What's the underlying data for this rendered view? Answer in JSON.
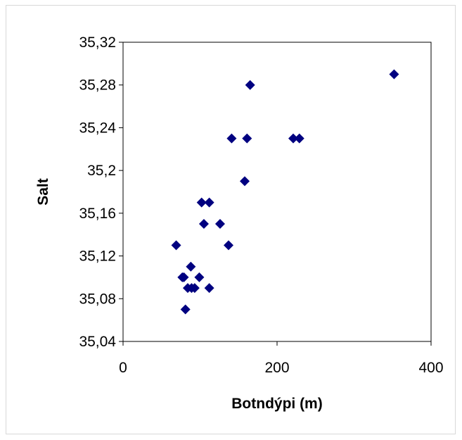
{
  "chart_data": {
    "type": "scatter",
    "title": "",
    "xlabel": "Botndýpi (m)",
    "ylabel": "Salt",
    "xlim": [
      0,
      400
    ],
    "ylim": [
      35.04,
      35.32
    ],
    "x_ticks": [
      "0",
      "200",
      "400"
    ],
    "y_ticks": [
      "35,04",
      "35,08",
      "35,12",
      "35,16",
      "35,2",
      "35,24",
      "35,28",
      "35,32"
    ],
    "grid": false,
    "legend": "none",
    "marker": "diamond",
    "marker_color": "#000080",
    "points": [
      {
        "x": 69,
        "y": 35.13
      },
      {
        "x": 77,
        "y": 35.1
      },
      {
        "x": 79,
        "y": 35.1
      },
      {
        "x": 81,
        "y": 35.07
      },
      {
        "x": 84,
        "y": 35.09
      },
      {
        "x": 88,
        "y": 35.11
      },
      {
        "x": 89,
        "y": 35.09
      },
      {
        "x": 93,
        "y": 35.09
      },
      {
        "x": 99,
        "y": 35.1
      },
      {
        "x": 102,
        "y": 35.17
      },
      {
        "x": 105,
        "y": 35.15
      },
      {
        "x": 112,
        "y": 35.17
      },
      {
        "x": 112,
        "y": 35.09
      },
      {
        "x": 126,
        "y": 35.15
      },
      {
        "x": 137,
        "y": 35.13
      },
      {
        "x": 141,
        "y": 35.23
      },
      {
        "x": 158,
        "y": 35.19
      },
      {
        "x": 161,
        "y": 35.23
      },
      {
        "x": 165,
        "y": 35.28
      },
      {
        "x": 221,
        "y": 35.23
      },
      {
        "x": 229,
        "y": 35.23
      },
      {
        "x": 352,
        "y": 35.29
      }
    ]
  }
}
